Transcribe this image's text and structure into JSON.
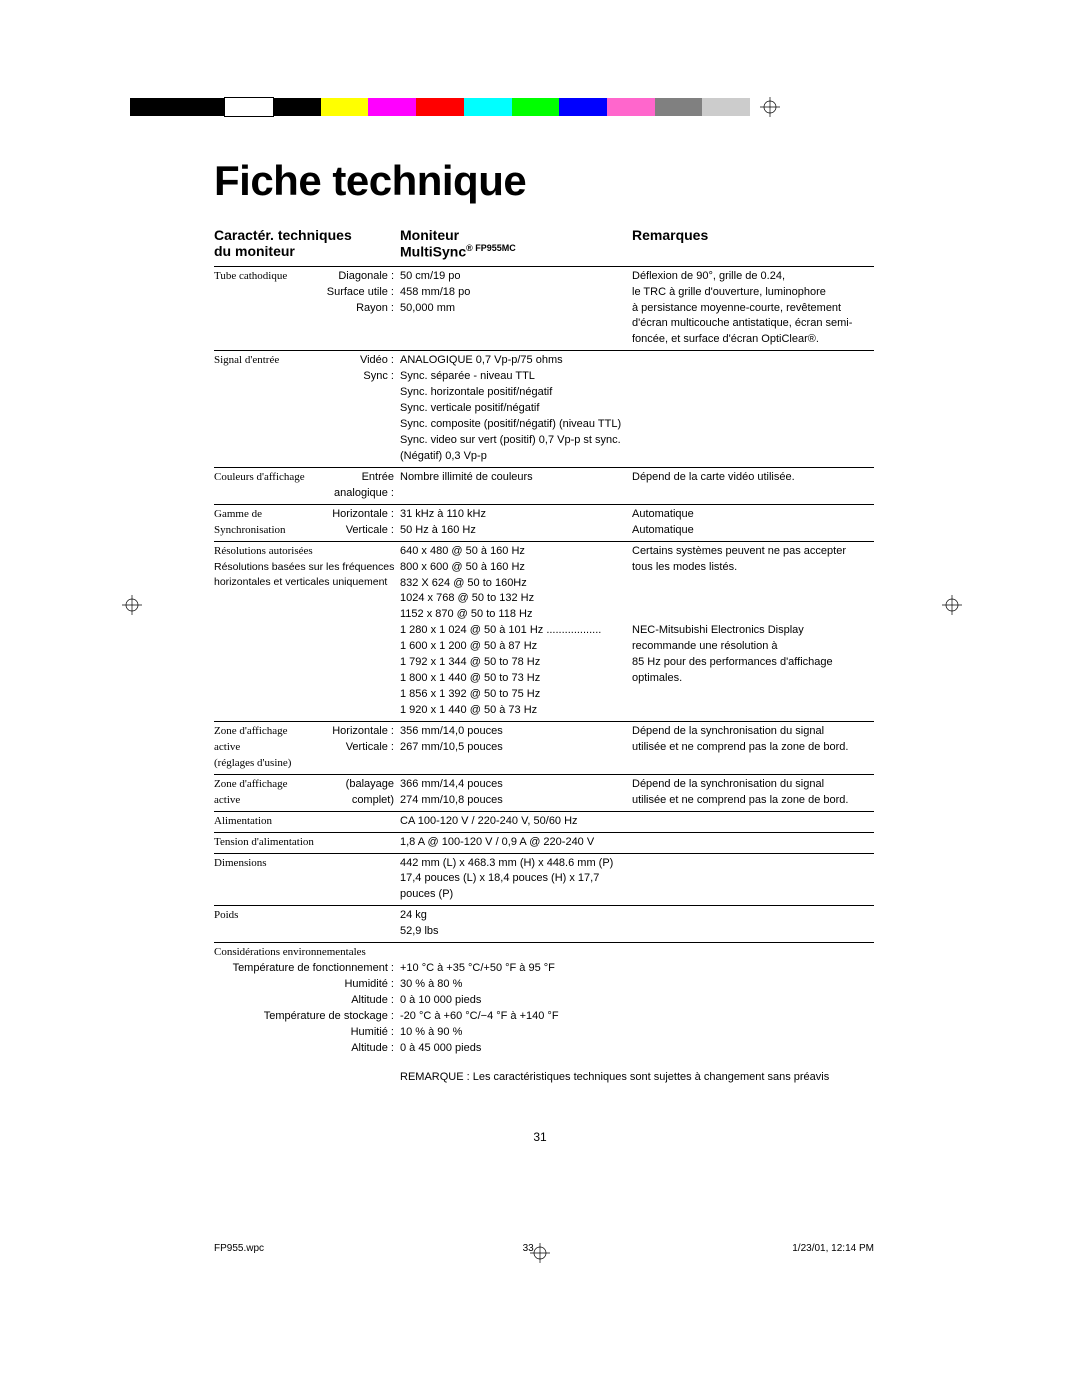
{
  "color_bar": [
    "#000000",
    "#000000",
    "#ffffff",
    "#000000",
    "#ffff00",
    "#ff00ff",
    "#ff0000",
    "#00ffff",
    "#00ff00",
    "#0000ff",
    "#ff66cc",
    "#808080",
    "#cccccc"
  ],
  "title": "Fiche technique",
  "headers": {
    "col1_line1": "Caractér. techniques",
    "col1_line2": "du moniteur",
    "col2_line1": "Moniteur",
    "col2_line2a": "MultiSync",
    "col2_line2b": "® FP955",
    "col2_line2c": "MC",
    "col3": "Remarques"
  },
  "rows": [
    {
      "label": "Tube cathodique",
      "sublabels": [
        "Diagonale :",
        "Surface utile :",
        "Rayon :"
      ],
      "mid": [
        "50 cm/19 po",
        "458 mm/18 po",
        "50,000 mm"
      ],
      "right": [
        "Déflexion de 90°, grille de 0.24,",
        "le TRC à grille d'ouverture, luminophore",
        "à persistance moyenne-courte, revêtement",
        "d'écran multicouche antistatique, écran semi-",
        "foncée, et surface d'écran OptiClear®."
      ]
    },
    {
      "label": "Signal d'entrée",
      "sublabels": [
        "Vidéo :",
        "Sync :"
      ],
      "mid": [
        "ANALOGIQUE 0,7 Vp-p/75 ohms",
        "Sync. séparée - niveau TTL",
        "Sync. horizontale positif/négatif",
        "Sync. verticale positif/négatif",
        "Sync. composite (positif/négatif) (niveau TTL)",
        "Sync. video sur vert (positif) 0,7 Vp-p st sync.",
        "(Négatif) 0,3 Vp-p"
      ],
      "right": []
    },
    {
      "label": "Couleurs d'affichage",
      "sublabels": [
        "Entrée analogique :"
      ],
      "mid": [
        "Nombre illimité de couleurs"
      ],
      "right": [
        "Dépend de la carte vidéo utilisée."
      ],
      "wide_label": true
    },
    {
      "label": "Gamme de\nSynchronisation",
      "sublabels": [
        "Horizontale :",
        "Verticale :"
      ],
      "mid": [
        "31 kHz à 110 kHz",
        "50 Hz à 160 Hz"
      ],
      "right": [
        "Automatique",
        "Automatique"
      ]
    },
    {
      "label": "Résolutions autorisées\nRésolutions basées sur les fréquences\n  horizontales et verticales uniquement",
      "sublabels": [],
      "mid": [
        "640 x 480 @ 50 à 160 Hz",
        "800 x 600 @ 50 à 160 Hz",
        "832 X 624 @ 50 to 160Hz",
        "1024 x 768 @ 50 to 132 Hz",
        "1152 x 870 @ 50 to 118 Hz",
        "1 280 x 1 024 @ 50 à 101 Hz ..................",
        "1 600 x 1 200 @ 50 à 87 Hz",
        "1 792 x 1 344 @ 50 to 78 Hz",
        "1 800 x 1 440 @ 50 to 73 Hz",
        "1 856 x 1 392 @ 50 to 75 Hz",
        "1 920 x 1 440 @ 50 à 73 Hz"
      ],
      "right": [
        "Certains systèmes peuvent ne pas accepter",
        "tous les modes listés.",
        "",
        "",
        "",
        "NEC-Mitsubishi Electronics Display",
        "recommande une résolution à",
        "85 Hz pour des performances d'affichage",
        "optimales."
      ],
      "full_left": true
    },
    {
      "label": "Zone d'affichage active\n(réglages d'usine)",
      "sublabels": [
        "Horizontale :",
        "Verticale :"
      ],
      "mid": [
        "356 mm/14,0 pouces",
        "267 mm/10,5 pouces"
      ],
      "right": [
        "Dépend de la synchronisation du signal",
        "utilisée et ne comprend pas la zone de bord."
      ]
    },
    {
      "label": "Zone d'affichage active",
      "sublabels": [
        "",
        "(balayage complet)"
      ],
      "mid": [
        "366 mm/14,4 pouces",
        "274 mm/10,8 pouces"
      ],
      "right": [
        "Dépend de la synchronisation du signal",
        "utilisée et ne comprend pas la zone de bord."
      ]
    },
    {
      "label": "Alimentation",
      "sublabels": [],
      "mid": [
        "CA 100-120 V / 220-240 V, 50/60 Hz"
      ],
      "right": []
    },
    {
      "label": "Tension d'alimentation",
      "sublabels": [],
      "mid": [
        "1,8 A @ 100-120 V / 0,9 A @ 220-240 V"
      ],
      "right": []
    },
    {
      "label": "Dimensions",
      "sublabels": [],
      "mid": [
        "442 mm (L) x 468.3 mm (H) x 448.6 mm (P)",
        "17,4 pouces (L) x 18,4 pouces (H) x 17,7 pouces (P)"
      ],
      "right": []
    },
    {
      "label": "Poids",
      "sublabels": [],
      "mid": [
        "24 kg",
        "52,9 lbs"
      ],
      "right": []
    },
    {
      "label": "Considérations environnementales",
      "sublabels": [
        "Température de fonctionnement :",
        "Humidité :",
        "Altitude :",
        "Température de stockage :",
        "Humitié :",
        "Altitude :"
      ],
      "mid": [
        "",
        "+10 °C à +35 °C/+50 °F à 95 °F",
        "30 % à 80 %",
        "0 à 10 000 pieds",
        "-20 °C à +60 °C/−4 °F à +140 °F",
        "10 % à 90 %",
        "0 à 45 000 pieds"
      ],
      "right": [],
      "full_left": true,
      "env": true
    }
  ],
  "note": "REMARQUE : Les caractéristiques techniques sont sujettes à changement sans préavis",
  "page_num": "31",
  "footer": {
    "file": "FP955.wpc",
    "sheet": "33",
    "date": "1/23/01, 12:14 PM"
  }
}
